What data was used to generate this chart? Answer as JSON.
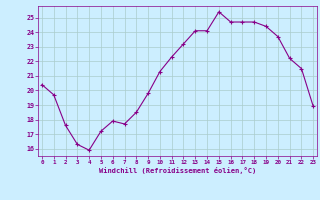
{
  "x": [
    0,
    1,
    2,
    3,
    4,
    5,
    6,
    7,
    8,
    9,
    10,
    11,
    12,
    13,
    14,
    15,
    16,
    17,
    18,
    19,
    20,
    21,
    22,
    23
  ],
  "y": [
    20.4,
    19.7,
    17.6,
    16.3,
    15.9,
    17.2,
    17.9,
    17.7,
    18.5,
    19.8,
    21.3,
    22.3,
    23.2,
    24.1,
    24.1,
    25.4,
    24.7,
    24.7,
    24.7,
    24.4,
    23.7,
    22.2,
    21.5,
    18.9
  ],
  "line_color": "#880088",
  "marker": "+",
  "bg_color": "#cceeff",
  "grid_color": "#aacccc",
  "xlabel": "Windchill (Refroidissement éolien,°C)",
  "xlabel_color": "#880088",
  "tick_color": "#880088",
  "spine_color": "#880088",
  "ylim": [
    15.5,
    25.8
  ],
  "yticks": [
    16,
    17,
    18,
    19,
    20,
    21,
    22,
    23,
    24,
    25
  ],
  "xticks": [
    0,
    1,
    2,
    3,
    4,
    5,
    6,
    7,
    8,
    9,
    10,
    11,
    12,
    13,
    14,
    15,
    16,
    17,
    18,
    19,
    20,
    21,
    22,
    23
  ],
  "xlim": [
    -0.3,
    23.3
  ]
}
